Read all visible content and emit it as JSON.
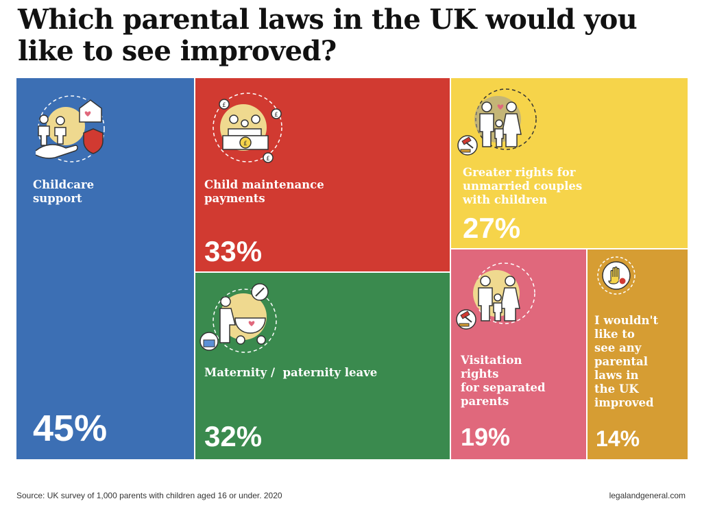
{
  "title": "Which parental laws in the UK would you like to see improved?",
  "source": "Source: UK survey of 1,000 parents with children aged 16 or under. 2020",
  "brand": "legalandgeneral.com",
  "colors": {
    "blue": "#3c6fb4",
    "red": "#d13a31",
    "green": "#3a8a4e",
    "yellow": "#f6d44a",
    "pink": "#e0687c",
    "orange": "#d69d33"
  },
  "chart_data": {
    "type": "treemap",
    "title": "Which parental laws in the UK would you like to see improved?",
    "unit": "%",
    "categories": [
      "Childcare support",
      "Child maintenance payments",
      "Greater rights for unmarried couples with children",
      "Maternity / paternity leave",
      "Visitation rights for separated parents",
      "I wouldn't like to see any parental laws in the UK improved"
    ],
    "values": [
      45,
      33,
      27,
      32,
      19,
      14
    ],
    "items": [
      {
        "id": "childcare",
        "label": "Childcare support",
        "label_lines": [
          "Childcare",
          "support"
        ],
        "value": 45,
        "display": "45%",
        "color": "#3c6fb4",
        "icon": "family-care-icon"
      },
      {
        "id": "maintenance",
        "label": "Child maintenance payments",
        "label_lines": [
          "Child maintenance",
          "payments"
        ],
        "value": 33,
        "display": "33%",
        "color": "#d13a31",
        "icon": "family-money-icon"
      },
      {
        "id": "unmarried",
        "label": "Greater rights for unmarried couples with children",
        "label_lines": [
          "Greater rights for",
          "unmarried couples",
          "with children"
        ],
        "value": 27,
        "display": "27%",
        "color": "#f6d44a",
        "icon": "family-gavel-icon"
      },
      {
        "id": "maternity",
        "label": "Maternity / paternity leave",
        "label_lines": [
          "Maternity /  paternity leave"
        ],
        "value": 32,
        "display": "32%",
        "color": "#3a8a4e",
        "icon": "parent-stroller-icon"
      },
      {
        "id": "visitation",
        "label": "Visitation rights for separated parents",
        "label_lines": [
          "Visitation",
          "rights",
          "for separated",
          "parents"
        ],
        "value": 19,
        "display": "19%",
        "color": "#e0687c",
        "icon": "family-gavel-icon"
      },
      {
        "id": "none",
        "label": "I wouldn't like to see any parental laws in the UK improved",
        "label_lines": [
          "I wouldn't",
          "like to",
          "see any",
          "parental",
          "laws in",
          "the UK",
          "improved"
        ],
        "value": 14,
        "display": "14%",
        "color": "#d69d33",
        "icon": "stop-hand-icon"
      }
    ]
  }
}
